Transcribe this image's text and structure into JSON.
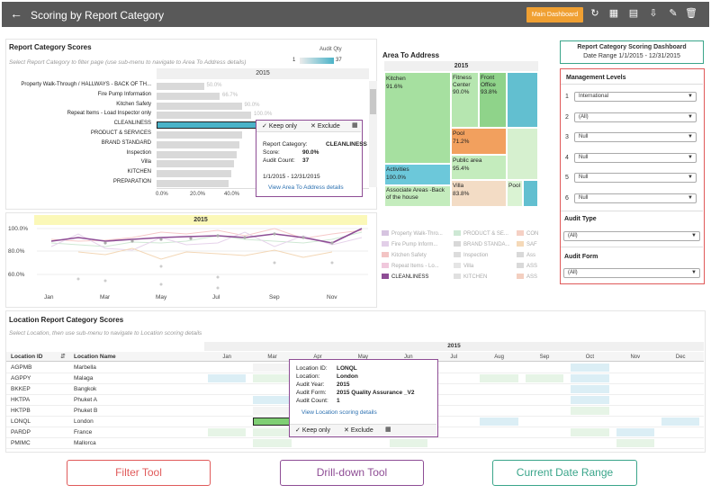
{
  "header": {
    "title": "Scoring by Report Category",
    "main_dashboard": "Main Dashboard"
  },
  "rcs": {
    "title": "Report Category Scores",
    "hint": "Select Report Category to filter page (use sub-menu to navigate to Area To Address details)",
    "audit_qty_label": "Audit Qty",
    "audit_qty_min": "1",
    "audit_qty_max": "37",
    "year": "2015",
    "rows": [
      {
        "label": "Property Walk-Through / HALLWAYS - BACK OF TH...",
        "value": "50.0%"
      },
      {
        "label": "Fire Pump Information",
        "value": "66.7%"
      },
      {
        "label": "Kitchen Safety",
        "value": "90.0%"
      },
      {
        "label": "Repeat Items - Load Inspector only",
        "value": "100.0%"
      },
      {
        "label": "CLEANLINESS",
        "value": ""
      },
      {
        "label": "PRODUCT & SERVICES",
        "value": ""
      },
      {
        "label": "BRAND STANDARD",
        "value": ""
      },
      {
        "label": "Inspection",
        "value": ""
      },
      {
        "label": "Villa",
        "value": ""
      },
      {
        "label": "KITCHEN",
        "value": ""
      },
      {
        "label": "PREPARATION",
        "value": ""
      }
    ],
    "axis": [
      "0.0%",
      "20.0%",
      "40.0%",
      "60.0%",
      "80.0%",
      "100.0%"
    ]
  },
  "tooltip1": {
    "keep": "Keep only",
    "exclude": "Exclude",
    "lines": [
      {
        "k": "Report Category:",
        "v": "CLEANLINESS"
      },
      {
        "k": "Score:",
        "v": "90.0%"
      },
      {
        "k": "Audit Count:",
        "v": "37"
      }
    ],
    "range": "1/1/2015 - 12/31/2015",
    "link": "View Area To Address details"
  },
  "trend": {
    "year": "2015",
    "yticks": [
      "100.0%",
      "80.0%",
      "60.0%"
    ],
    "months": [
      "Jan",
      "Mar",
      "May",
      "Jul",
      "Sep",
      "Nov"
    ]
  },
  "legend": [
    {
      "label": "Property Walk-Thro...",
      "color": "#d6c4e0"
    },
    {
      "label": "PRODUCT & SE...",
      "color": "#cde8d4"
    },
    {
      "label": "CON",
      "color": "#f5d0c4"
    },
    {
      "label": "Fire Pump Inform...",
      "color": "#e2cfe8"
    },
    {
      "label": "BRAND STANDA...",
      "color": "#d8d8d8"
    },
    {
      "label": "SAF",
      "color": "#f5d9b8"
    },
    {
      "label": "Kitchen Safety",
      "color": "#f3c4c4"
    },
    {
      "label": "Inspection",
      "color": "#dcdcdc"
    },
    {
      "label": "Ass",
      "color": "#d9d9d9"
    },
    {
      "label": "Repeat Items - Lo...",
      "color": "#f0c8dc"
    },
    {
      "label": "Villa",
      "color": "#e5e5e5"
    },
    {
      "label": "ASS",
      "color": "#d9d9d9"
    },
    {
      "label": "CLEANLINESS",
      "color": "#8e4d95"
    },
    {
      "label": "KITCHEN",
      "color": "#e0e0e0"
    },
    {
      "label": "ASS",
      "color": "#f3cfc0"
    }
  ],
  "area": {
    "title": "Area To Address",
    "year": "2015",
    "cells": [
      {
        "label": "Kitchen",
        "value": "91.6%"
      },
      {
        "label": "Fitness Center",
        "value": "90.0%"
      },
      {
        "label": "Front Office",
        "value": "93.8%"
      },
      {
        "label": "Pool",
        "value": "71.2%"
      },
      {
        "label": "Public area",
        "value": "95.4%"
      },
      {
        "label": "Activities",
        "value": "100.0%"
      },
      {
        "label": "Associate Areas -Back of the house",
        "value": ""
      },
      {
        "label": "Villa",
        "value": "83.8%"
      },
      {
        "label": "Pool",
        "value": ""
      }
    ]
  },
  "dash": {
    "title": "Report Category Scoring Dashboard",
    "range": "Date Range 1/1/2015 - 12/31/2015"
  },
  "filters": {
    "mgmt_title": "Management Levels",
    "levels": [
      {
        "num": "1",
        "value": "International"
      },
      {
        "num": "2",
        "value": "(All)"
      },
      {
        "num": "3",
        "value": "Null"
      },
      {
        "num": "4",
        "value": "Null"
      },
      {
        "num": "5",
        "value": "Null"
      },
      {
        "num": "6",
        "value": "Null"
      }
    ],
    "audit_type_title": "Audit Type",
    "audit_type": "(All)",
    "audit_form_title": "Audit Form",
    "audit_form": "(All)"
  },
  "loc": {
    "title": "Location Report Category Scores",
    "hint": "Select Location, then use sub-menu to navigate to Location scoring details",
    "year": "2015",
    "col_id": "Location ID",
    "col_name": "Location Name",
    "months": [
      "Jan",
      "Mar",
      "Apr",
      "May",
      "Jun",
      "Jul",
      "Aug",
      "Sep",
      "Oct",
      "Nov",
      "Dec"
    ],
    "rows": [
      {
        "id": "AGPMB",
        "name": "Marbella"
      },
      {
        "id": "AGPPY",
        "name": "Malaga"
      },
      {
        "id": "BKKEP",
        "name": "Bangkok"
      },
      {
        "id": "HKTPA",
        "name": "Phuket A"
      },
      {
        "id": "HKTPB",
        "name": "Phuket B"
      },
      {
        "id": "LONQL",
        "name": "London"
      },
      {
        "id": "PARDP",
        "name": "France"
      },
      {
        "id": "PMIMC",
        "name": "Mallorca"
      }
    ]
  },
  "tooltip2": {
    "lines": [
      {
        "k": "Location ID:",
        "v": "LONQL"
      },
      {
        "k": "Location:",
        "v": "London"
      },
      {
        "k": "Audit Year:",
        "v": "2015"
      },
      {
        "k": "Audit Form:",
        "v": "2015 Quality Assurance _V2"
      },
      {
        "k": "Audit Count:",
        "v": "1"
      }
    ],
    "link": "View Location scoring details",
    "keep": "Keep only",
    "exclude": "Exclude"
  },
  "callouts": {
    "filter": "Filter Tool",
    "drill": "Drill-down Tool",
    "date": "Current Date Range"
  },
  "colors": {
    "filter": "#e05a5a",
    "drill": "#8e4d95",
    "date": "#3aa58a",
    "accent": "#f0a032",
    "bar_selected": "#4bb3c8"
  }
}
